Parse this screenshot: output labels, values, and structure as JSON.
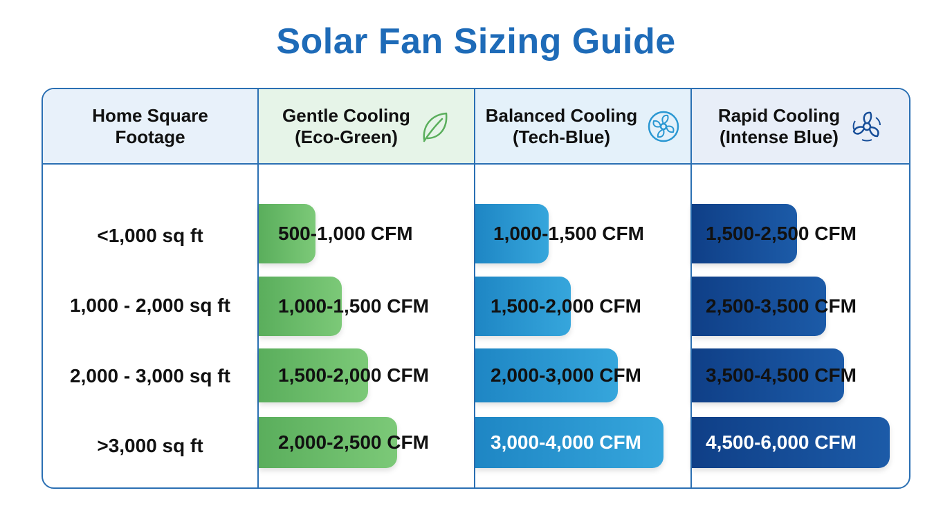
{
  "title": "Solar Fan Sizing Guide",
  "colors": {
    "title": "#1e6bb8",
    "border": "#2a6fb3",
    "gentle": "#6cbf6a",
    "balanced": "#2a97d2",
    "rapid": "#174e99"
  },
  "header": {
    "sqft_line1": "Home Square",
    "sqft_line2": "Footage",
    "columns": [
      {
        "line1": "Gentle Cooling",
        "line2": "(Eco-Green)",
        "icon": "leaf-icon"
      },
      {
        "line1": "Balanced Cooling",
        "line2": "(Tech-Blue)",
        "icon": "fan-icon"
      },
      {
        "line1": "Rapid Cooling",
        "line2": "(Intense Blue)",
        "icon": "turbine-fan-icon"
      }
    ]
  },
  "rows": [
    {
      "sqft": "<1,000 sq ft",
      "gentle": "500-1,000 CFM",
      "balanced": "1,000-1,500 CFM",
      "rapid": "1,500-2,500 CFM"
    },
    {
      "sqft": "1,000 - 2,000 sq ft",
      "gentle": "1,000-1,500 CFM",
      "balanced": "1,500-2,000 CFM",
      "rapid": "2,500-3,500 CFM"
    },
    {
      "sqft": "2,000 - 3,000 sq ft",
      "gentle": "1,500-2,000 CFM",
      "balanced": "2,000-3,000 CFM",
      "rapid": "3,500-4,500 CFM"
    },
    {
      "sqft": ">3,000 sq ft",
      "gentle": "2,000-2,500 CFM",
      "balanced": "3,000-4,000 CFM",
      "rapid": "4,500-6,000 CFM"
    }
  ]
}
